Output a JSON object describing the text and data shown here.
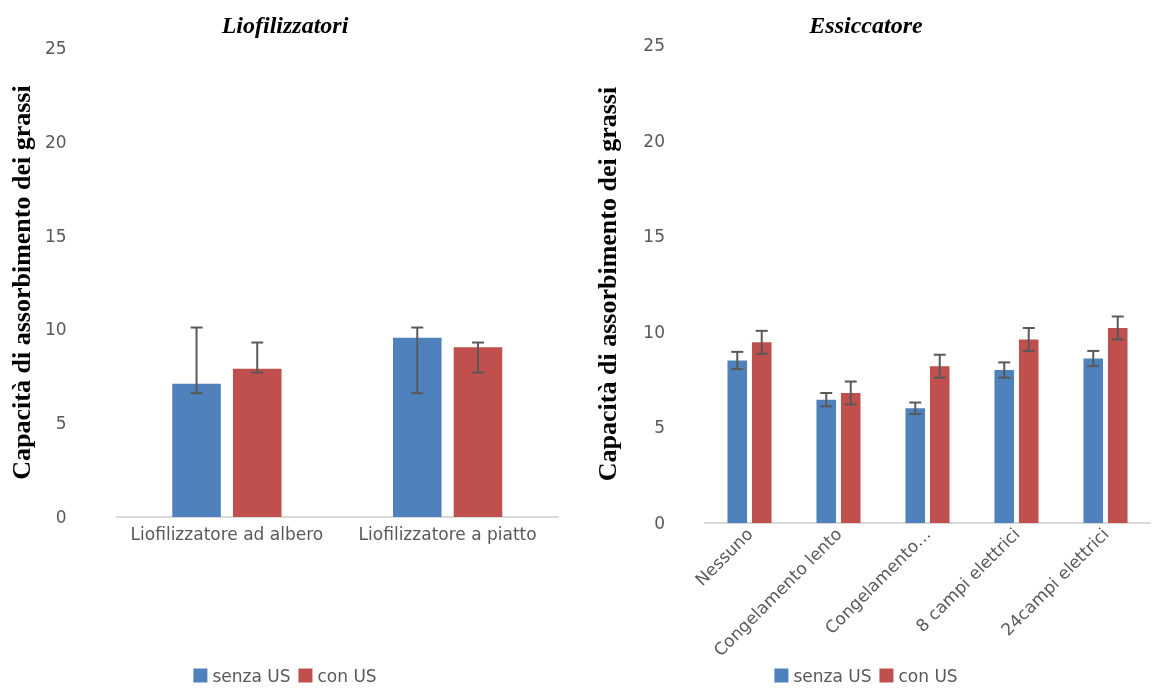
{
  "chart_data": [
    {
      "type": "bar",
      "title": "Liofilizzatori",
      "ylabel": "Capacità di assorbimento dei grassi",
      "categories": [
        "Liofilizzatore ad albero",
        "Liofilizzatore a piatto"
      ],
      "series": [
        {
          "name": "senza US",
          "color": "#4f81bd",
          "values": [
            7.1,
            9.55
          ],
          "errors": [
            [
              6.6,
              10.1
            ],
            [
              6.6,
              10.1
            ]
          ]
        },
        {
          "name": "con US",
          "color": "#c0504d",
          "values": [
            7.9,
            9.05
          ],
          "errors": [
            [
              7.7,
              9.3
            ],
            [
              7.7,
              9.3
            ]
          ]
        }
      ],
      "ylim": [
        0,
        25
      ],
      "yticks": [
        0,
        5,
        10,
        15,
        20,
        25
      ],
      "grid": false,
      "legend": "bottom"
    },
    {
      "type": "bar",
      "title": "Essiccatore",
      "ylabel": "Capacità di assorbimento dei grassi",
      "categories": [
        "Nessuno",
        "Congelamento lento",
        "Congelamento…",
        "8 campi elettrici",
        "24campi elettrici"
      ],
      "series": [
        {
          "name": "senza US",
          "color": "#4f81bd",
          "values": [
            8.5,
            6.45,
            6.0,
            8.0,
            8.6
          ],
          "errors": [
            0.45,
            0.35,
            0.3,
            0.4,
            0.4
          ]
        },
        {
          "name": "con US",
          "color": "#c0504d",
          "values": [
            9.45,
            6.8,
            8.2,
            9.6,
            10.2
          ],
          "errors": [
            0.6,
            0.6,
            0.6,
            0.6,
            0.6
          ]
        }
      ],
      "ylim": [
        0,
        25
      ],
      "yticks": [
        0,
        5,
        10,
        15,
        20,
        25
      ],
      "grid": false,
      "legend": "bottom"
    }
  ]
}
